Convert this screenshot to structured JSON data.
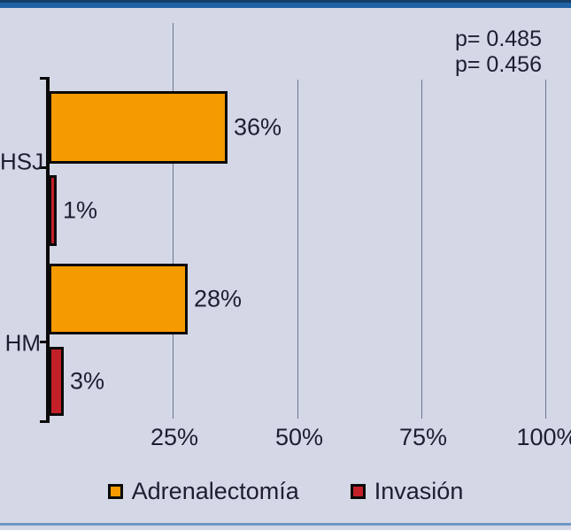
{
  "figure": {
    "background_color": "#D4D7E6",
    "top_band_color": "#2062A4",
    "top_band_edge_color": "#153E69",
    "bottom_line_color": "#7096C5",
    "text_color": "#1E1E30",
    "axis_color": "#0A0A0A",
    "gridline_color": "#6F7590"
  },
  "chart_data": {
    "type": "bar",
    "orientation": "horizontal",
    "title": "",
    "categories": [
      "HSJ",
      "HM"
    ],
    "series": [
      {
        "name": "Adrenalectomía",
        "color": "#F59B00",
        "values": [
          36,
          28
        ],
        "value_labels": [
          "36%",
          "28%"
        ]
      },
      {
        "name": "Invasión",
        "color": "#C4202A",
        "values": [
          1,
          3
        ],
        "value_labels": [
          "1%",
          "3%"
        ]
      }
    ],
    "x_ticks": [
      {
        "label": "25%",
        "value": 25
      },
      {
        "label": "50%",
        "value": 50
      },
      {
        "label": "75%",
        "value": 75
      },
      {
        "label": "100%",
        "value": 100
      }
    ],
    "xlim": [
      0,
      100
    ],
    "grid": "vertical",
    "legend_position": "bottom",
    "annotations": [
      "p= 0.485",
      "p= 0.456"
    ]
  }
}
